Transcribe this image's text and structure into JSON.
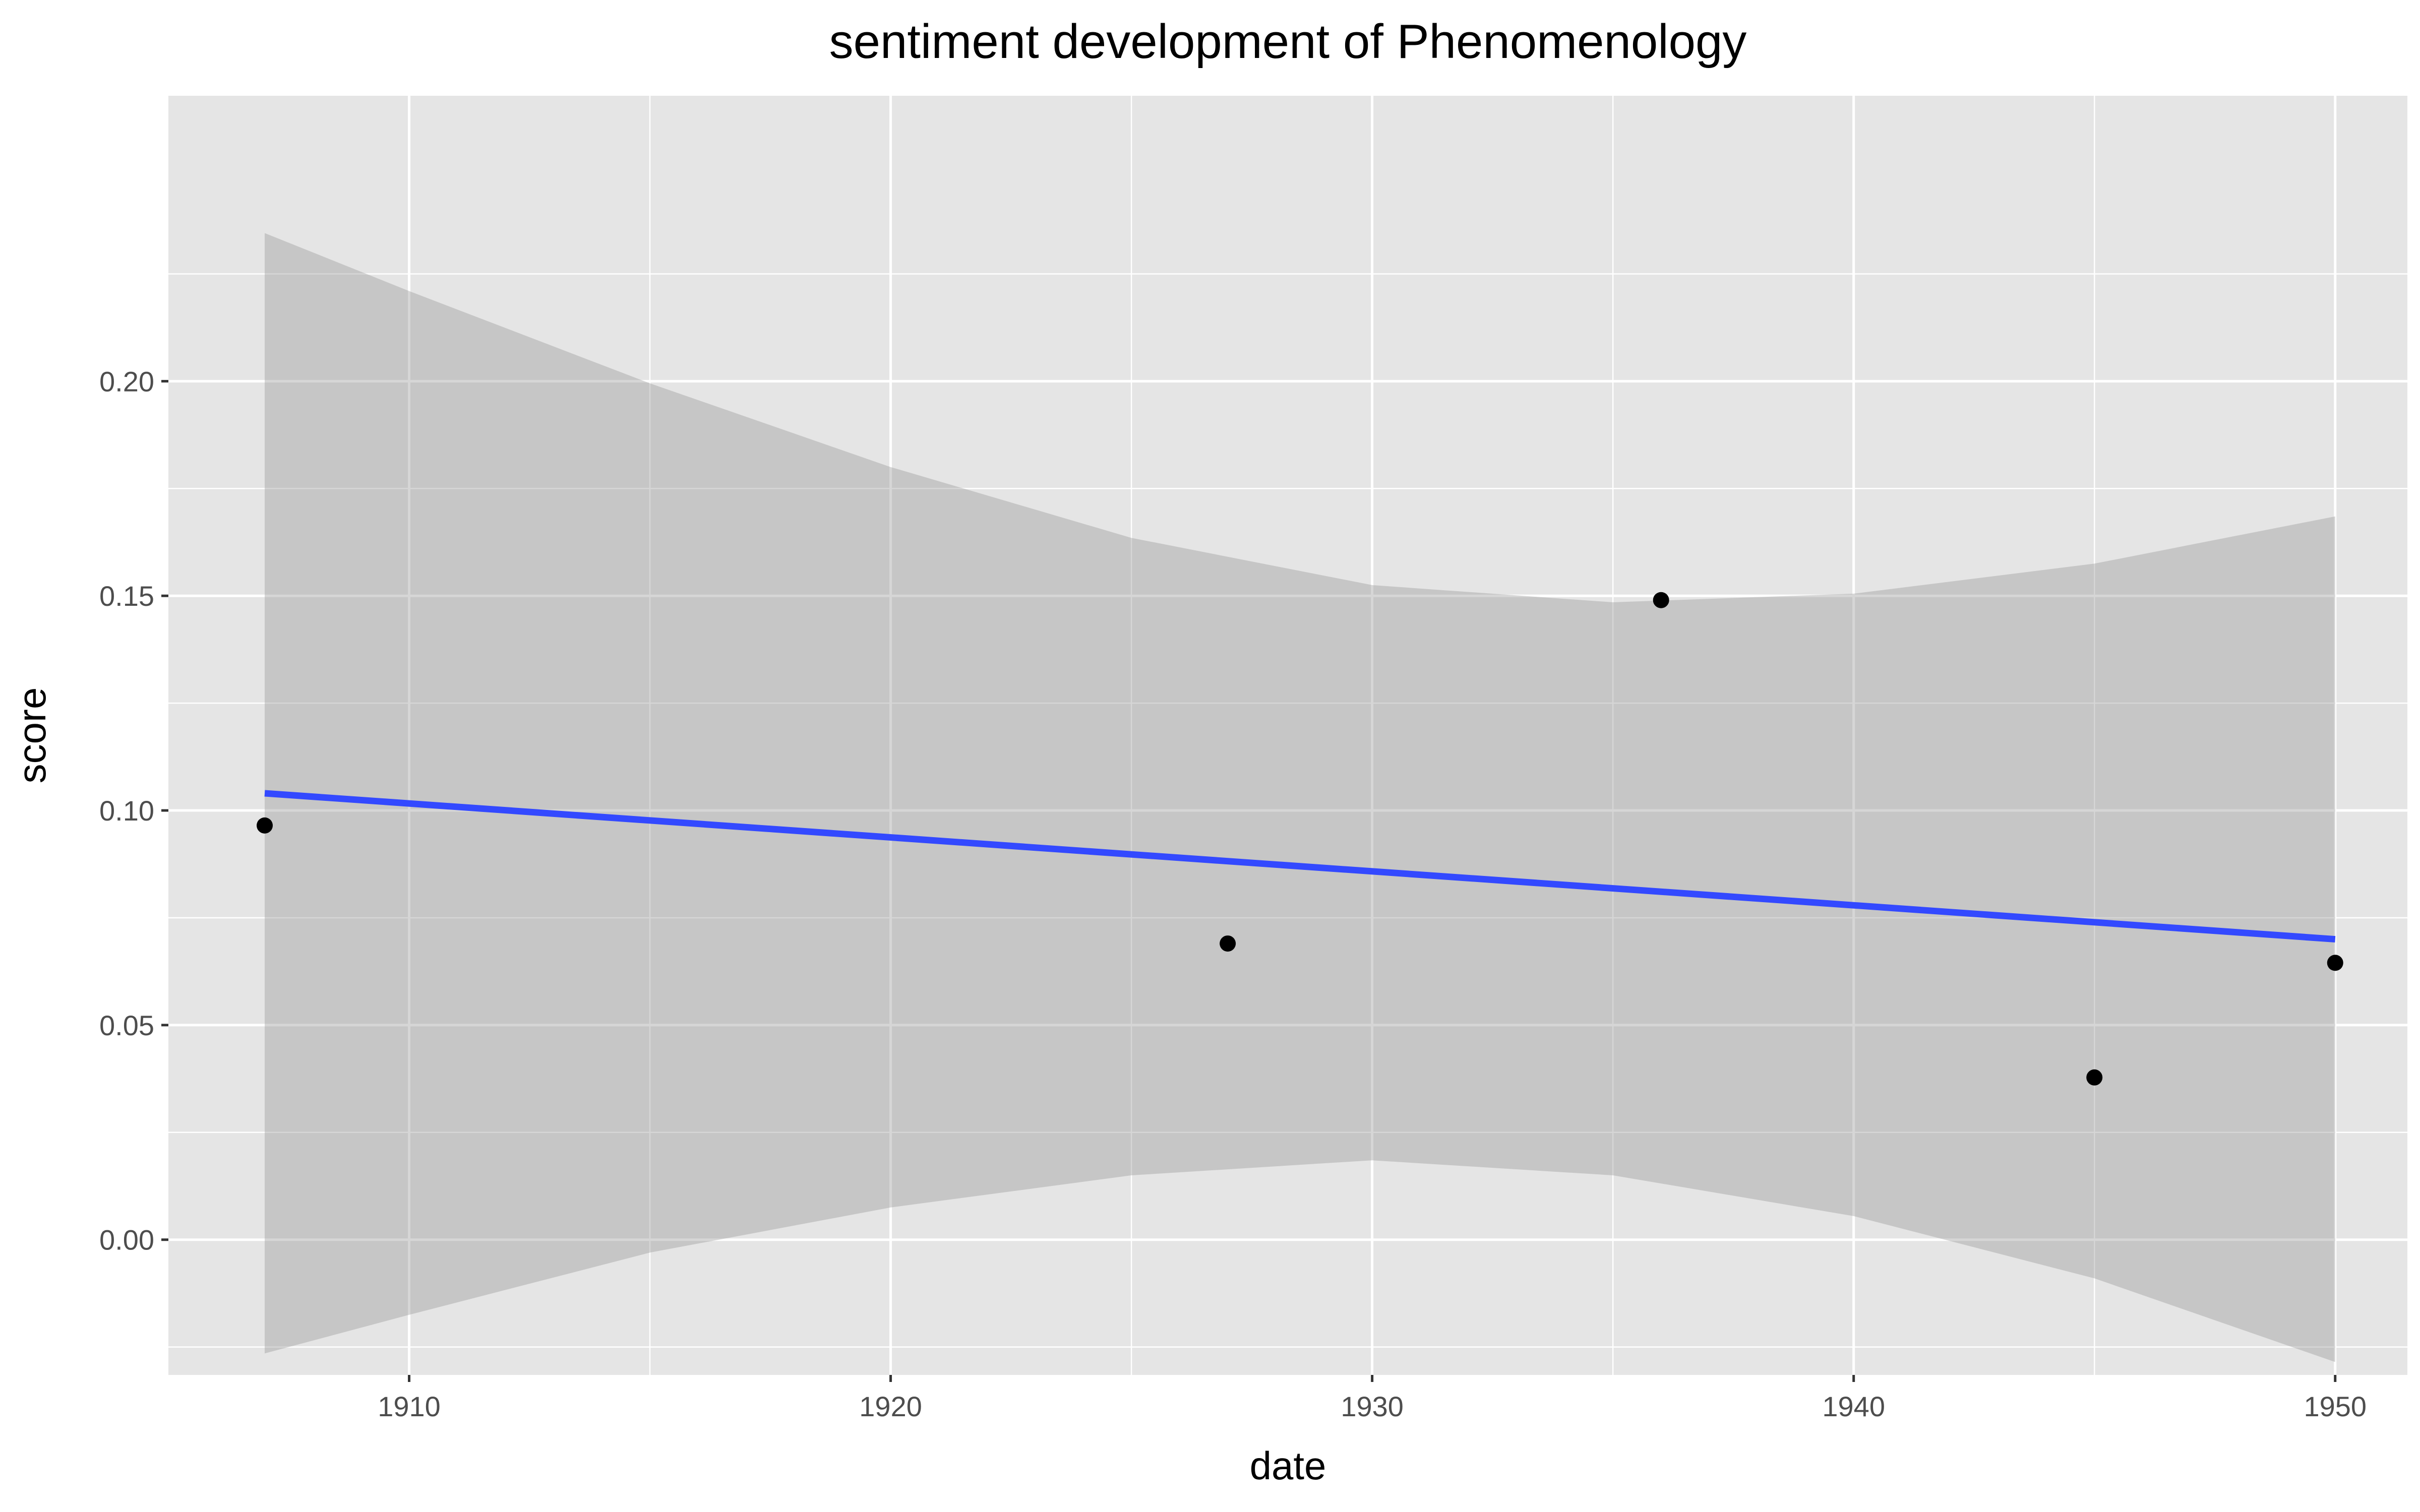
{
  "chart_data": {
    "type": "scatter",
    "title": "sentiment development of Phenomenology",
    "xlabel": "date",
    "ylabel": "score",
    "xlim": [
      1905,
      1951.5
    ],
    "ylim": [
      -0.0315,
      0.2665
    ],
    "x_ticks": [
      1910,
      1920,
      1930,
      1940,
      1950
    ],
    "x_tick_labels": [
      "1910",
      "1920",
      "1930",
      "1940",
      "1950"
    ],
    "y_ticks": [
      0.0,
      0.05,
      0.1,
      0.15,
      0.2
    ],
    "y_tick_labels": [
      "0.00",
      "0.05",
      "0.10",
      "0.15",
      "0.20"
    ],
    "grid": true,
    "points": [
      {
        "x": 1907,
        "y": 0.0965
      },
      {
        "x": 1927,
        "y": 0.069
      },
      {
        "x": 1936,
        "y": 0.149
      },
      {
        "x": 1945,
        "y": 0.0378
      },
      {
        "x": 1950,
        "y": 0.0645
      }
    ],
    "trend_line": {
      "method": "linear",
      "x": [
        1907,
        1950
      ],
      "y": [
        0.104,
        0.07
      ]
    },
    "confidence_band": [
      {
        "x": 1907,
        "lower": -0.0265,
        "upper": 0.2345
      },
      {
        "x": 1910,
        "lower": -0.0175,
        "upper": 0.221
      },
      {
        "x": 1915,
        "lower": -0.003,
        "upper": 0.1995
      },
      {
        "x": 1920,
        "lower": 0.0075,
        "upper": 0.18
      },
      {
        "x": 1925,
        "lower": 0.015,
        "upper": 0.1635
      },
      {
        "x": 1930,
        "lower": 0.0185,
        "upper": 0.1525
      },
      {
        "x": 1935,
        "lower": 0.015,
        "upper": 0.1485
      },
      {
        "x": 1940,
        "lower": 0.0055,
        "upper": 0.1505
      },
      {
        "x": 1945,
        "lower": -0.009,
        "upper": 0.1575
      },
      {
        "x": 1950,
        "lower": -0.0285,
        "upper": 0.1685
      }
    ],
    "colors": {
      "panel_background": "#e5e5e5",
      "grid": "#ffffff",
      "points": "#000000",
      "trend_line": "#3349ff",
      "confidence_band": "#999999"
    }
  }
}
